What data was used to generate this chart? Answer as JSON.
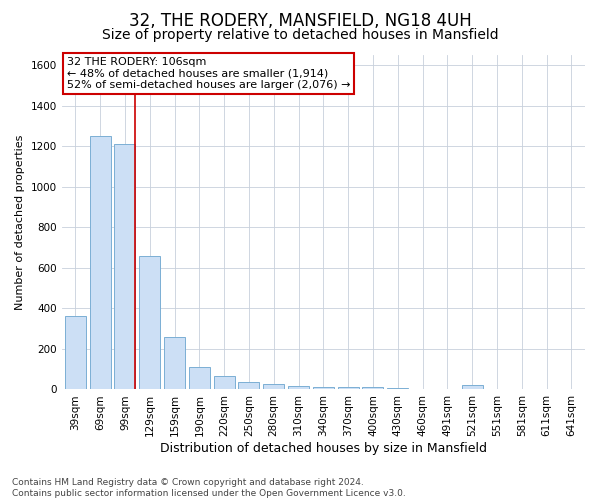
{
  "title": "32, THE RODERY, MANSFIELD, NG18 4UH",
  "subtitle": "Size of property relative to detached houses in Mansfield",
  "xlabel": "Distribution of detached houses by size in Mansfield",
  "ylabel": "Number of detached properties",
  "categories": [
    "39sqm",
    "69sqm",
    "99sqm",
    "129sqm",
    "159sqm",
    "190sqm",
    "220sqm",
    "250sqm",
    "280sqm",
    "310sqm",
    "340sqm",
    "370sqm",
    "400sqm",
    "430sqm",
    "460sqm",
    "491sqm",
    "521sqm",
    "551sqm",
    "581sqm",
    "611sqm",
    "641sqm"
  ],
  "values": [
    360,
    1250,
    1210,
    660,
    260,
    110,
    65,
    35,
    25,
    15,
    10,
    10,
    10,
    5,
    0,
    0,
    20,
    0,
    0,
    0,
    0
  ],
  "bar_color": "#ccdff5",
  "bar_edge_color": "#7bafd4",
  "grid_color": "#c8d0dc",
  "red_line_index": 2,
  "annotation_line1": "32 THE RODERY: 106sqm",
  "annotation_line2": "← 48% of detached houses are smaller (1,914)",
  "annotation_line3": "52% of semi-detached houses are larger (2,076) →",
  "annotation_box_facecolor": "#ffffff",
  "annotation_box_edgecolor": "#cc0000",
  "ylim": [
    0,
    1650
  ],
  "yticks": [
    0,
    200,
    400,
    600,
    800,
    1000,
    1200,
    1400,
    1600
  ],
  "footer": "Contains HM Land Registry data © Crown copyright and database right 2024.\nContains public sector information licensed under the Open Government Licence v3.0.",
  "title_fontsize": 12,
  "subtitle_fontsize": 10,
  "xlabel_fontsize": 9,
  "ylabel_fontsize": 8,
  "tick_fontsize": 7.5,
  "annotation_fontsize": 8,
  "footer_fontsize": 6.5
}
